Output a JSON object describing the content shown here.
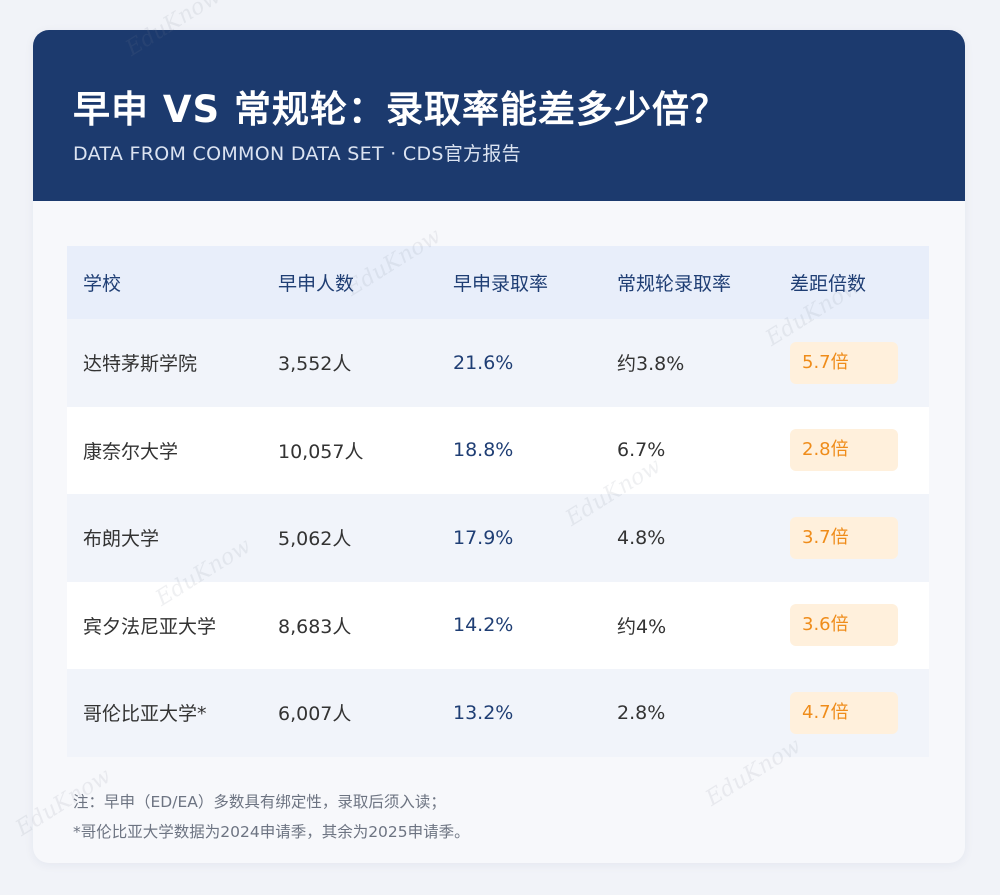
{
  "header": {
    "title": "早申 VS 常规轮：录取率能差多少倍？",
    "subtitle": "DATA FROM COMMON DATA SET · CDS官方报告"
  },
  "table": {
    "columns": [
      "学校",
      "早申人数",
      "早申录取率",
      "常规轮录取率",
      "差距倍数"
    ],
    "rows": [
      {
        "school": "达特茅斯学院",
        "ed_count": "3,552人",
        "ed_rate": "21.6%",
        "rd_rate": "约3.8%",
        "ratio": "5.7倍"
      },
      {
        "school": "康奈尔大学",
        "ed_count": "10,057人",
        "ed_rate": "18.8%",
        "rd_rate": "6.7%",
        "ratio": "2.8倍"
      },
      {
        "school": "布朗大学",
        "ed_count": "5,062人",
        "ed_rate": "17.9%",
        "rd_rate": "4.8%",
        "ratio": "3.7倍"
      },
      {
        "school": "宾夕法尼亚大学",
        "ed_count": "8,683人",
        "ed_rate": "14.2%",
        "rd_rate": "约4%",
        "ratio": "3.6倍"
      },
      {
        "school": "哥伦比亚大学*",
        "ed_count": "6,007人",
        "ed_rate": "13.2%",
        "rd_rate": "2.8%",
        "ratio": "4.7倍"
      }
    ]
  },
  "notes": [
    "注：早申（ED/EA）多数具有绑定性，录取后须入读；",
    "*哥伦比亚大学数据为2024申请季，其余为2025申请季。"
  ],
  "watermark": "EduKnow",
  "colors": {
    "header_bg": "#1c3a6e",
    "accent_orange": "#ef8c1a",
    "badge_bg": "#fff0dc",
    "rate_blue": "#1f3e74"
  }
}
